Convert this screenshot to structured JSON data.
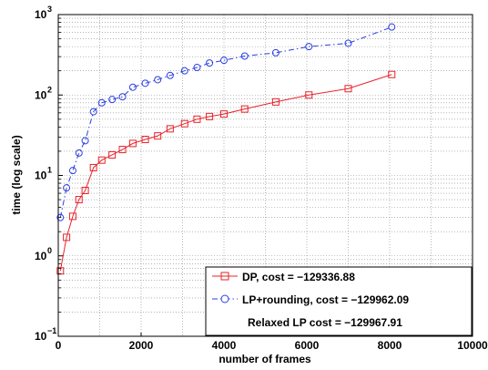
{
  "chart_data": {
    "type": "line",
    "xlabel": "number of frames",
    "ylabel": "time (log scale)",
    "xlim": [
      0,
      10000
    ],
    "ylim": [
      0.1,
      1000
    ],
    "yscale": "log",
    "grid": true,
    "xticks": [
      "0",
      "2000",
      "4000",
      "6000",
      "8000",
      "10000"
    ],
    "yticks": [
      {
        "base": "10",
        "exp": "−1"
      },
      {
        "base": "10",
        "exp": "0"
      },
      {
        "base": "10",
        "exp": "1"
      },
      {
        "base": "10",
        "exp": "2"
      },
      {
        "base": "10",
        "exp": "3"
      }
    ],
    "legend_position": "bottom-right",
    "series": [
      {
        "name": "DP, cost = −129336.88",
        "color": "#e8232a",
        "marker": "square",
        "linestyle": "solid",
        "x": [
          50,
          200,
          350,
          500,
          650,
          850,
          1050,
          1300,
          1550,
          1800,
          2100,
          2400,
          2700,
          3050,
          3350,
          3650,
          4000,
          4500,
          5250,
          6050,
          7000,
          8050
        ],
        "y": [
          0.65,
          1.7,
          3.1,
          5.0,
          6.5,
          12.5,
          15.5,
          18,
          21,
          25,
          28,
          31,
          38,
          44,
          50,
          54,
          58,
          67,
          82,
          100,
          120,
          180
        ]
      },
      {
        "name": "LP+rounding, cost = −129962.09",
        "color": "#2b3fe0",
        "marker": "circle",
        "linestyle": "dashdot",
        "x": [
          50,
          200,
          350,
          500,
          650,
          850,
          1050,
          1300,
          1550,
          1800,
          2100,
          2400,
          2700,
          3050,
          3350,
          3650,
          4000,
          4500,
          5250,
          6050,
          7000,
          8050
        ],
        "y": [
          3.0,
          7.0,
          11.5,
          19,
          27,
          62,
          80,
          88,
          95,
          125,
          140,
          155,
          175,
          200,
          220,
          250,
          270,
          305,
          335,
          400,
          440,
          700
        ]
      }
    ],
    "annotation": "Relaxed LP cost = −129967.91"
  }
}
